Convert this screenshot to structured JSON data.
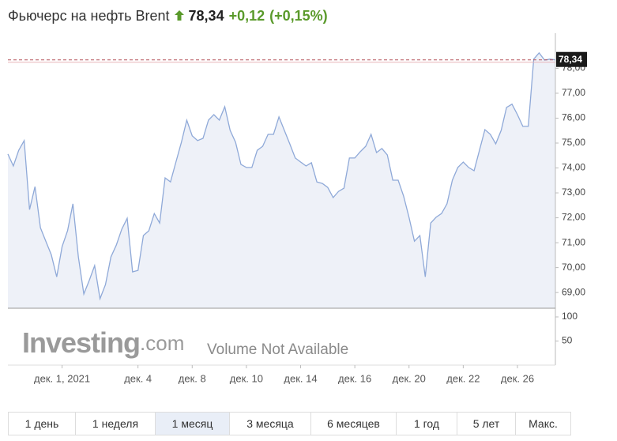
{
  "header": {
    "title": "Фьючерс на нефть Brent",
    "change": "+0,12",
    "change_pct": "(+0,15%)"
  },
  "chart_data": {
    "type": "area",
    "categories": [
      null,
      null,
      null,
      null,
      null,
      null,
      null,
      null,
      null,
      null,
      "дек. 1, 2021",
      null,
      null,
      null,
      null,
      null,
      null,
      null,
      null,
      null,
      null,
      null,
      null,
      null,
      "дек. 4",
      null,
      null,
      null,
      null,
      null,
      null,
      null,
      null,
      null,
      "дек. 8",
      null,
      null,
      null,
      null,
      null,
      null,
      null,
      null,
      null,
      "дек. 10",
      null,
      null,
      null,
      null,
      null,
      null,
      null,
      null,
      null,
      "дек. 14",
      null,
      null,
      null,
      null,
      null,
      null,
      null,
      null,
      null,
      "дек. 16",
      null,
      null,
      null,
      null,
      null,
      null,
      null,
      null,
      null,
      "дек. 20",
      null,
      null,
      null,
      null,
      null,
      null,
      null,
      null,
      null,
      "дек. 22",
      null,
      null,
      null,
      null,
      null,
      null,
      null,
      null,
      null,
      "дек. 26",
      null,
      null,
      null,
      null,
      null,
      null,
      null
    ],
    "values": [
      74.56,
      74.08,
      74.71,
      75.1,
      72.33,
      73.25,
      71.6,
      71.06,
      70.52,
      69.63,
      70.84,
      71.48,
      72.56,
      70.43,
      68.94,
      69.48,
      70.08,
      68.75,
      69.32,
      70.43,
      70.9,
      71.54,
      71.98,
      69.83,
      69.89,
      71.29,
      71.48,
      72.17,
      71.79,
      73.6,
      73.44,
      74.24,
      75.03,
      75.92,
      75.29,
      75.1,
      75.19,
      75.92,
      76.14,
      75.92,
      76.46,
      75.51,
      75.03,
      74.14,
      74.02,
      74.02,
      74.71,
      74.87,
      75.35,
      75.35,
      76.05,
      75.51,
      74.97,
      74.4,
      74.24,
      74.08,
      74.21,
      73.44,
      73.38,
      73.22,
      72.81,
      73.06,
      73.19,
      74.4,
      74.4,
      74.65,
      74.87,
      75.35,
      74.62,
      74.78,
      74.52,
      73.51,
      73.51,
      72.87,
      72.02,
      71.06,
      71.29,
      69.63,
      71.79,
      72.02,
      72.17,
      72.56,
      73.51,
      74.02,
      74.24,
      74.02,
      73.89,
      74.71,
      75.54,
      75.35,
      74.97,
      75.51,
      76.43,
      76.56,
      76.14,
      75.67,
      75.67,
      78.37,
      78.62,
      78.33,
      78.37,
      78.34
    ],
    "color": "#8fa9d8",
    "fill": "#eef1f8",
    "ylim": [
      68.37,
      79.41
    ],
    "yticks": [
      {
        "value": 69,
        "label": "69,00"
      },
      {
        "value": 70,
        "label": "70,00"
      },
      {
        "value": 71,
        "label": "71,00"
      },
      {
        "value": 72,
        "label": "72,00"
      },
      {
        "value": 73,
        "label": "73,00"
      },
      {
        "value": 74,
        "label": "74,00"
      },
      {
        "value": 75,
        "label": "75,00"
      },
      {
        "value": 76,
        "label": "76,00"
      },
      {
        "value": 77,
        "label": "77,00"
      },
      {
        "value": 78,
        "label": "78,00"
      }
    ],
    "last_price": {
      "value": 78.34,
      "label": "78,34"
    },
    "grid": false,
    "volume_ylim": [
      0,
      118
    ],
    "volume_yticks": [
      50,
      100
    ],
    "volume_note": "Volume Not Available",
    "watermark": [
      "Investing",
      ".com"
    ]
  },
  "range_buttons": [
    "1 день",
    "1 неделя",
    "1 месяц",
    "3 месяца",
    "6 месяцев",
    "1 год",
    "5 лет",
    "Макс."
  ]
}
